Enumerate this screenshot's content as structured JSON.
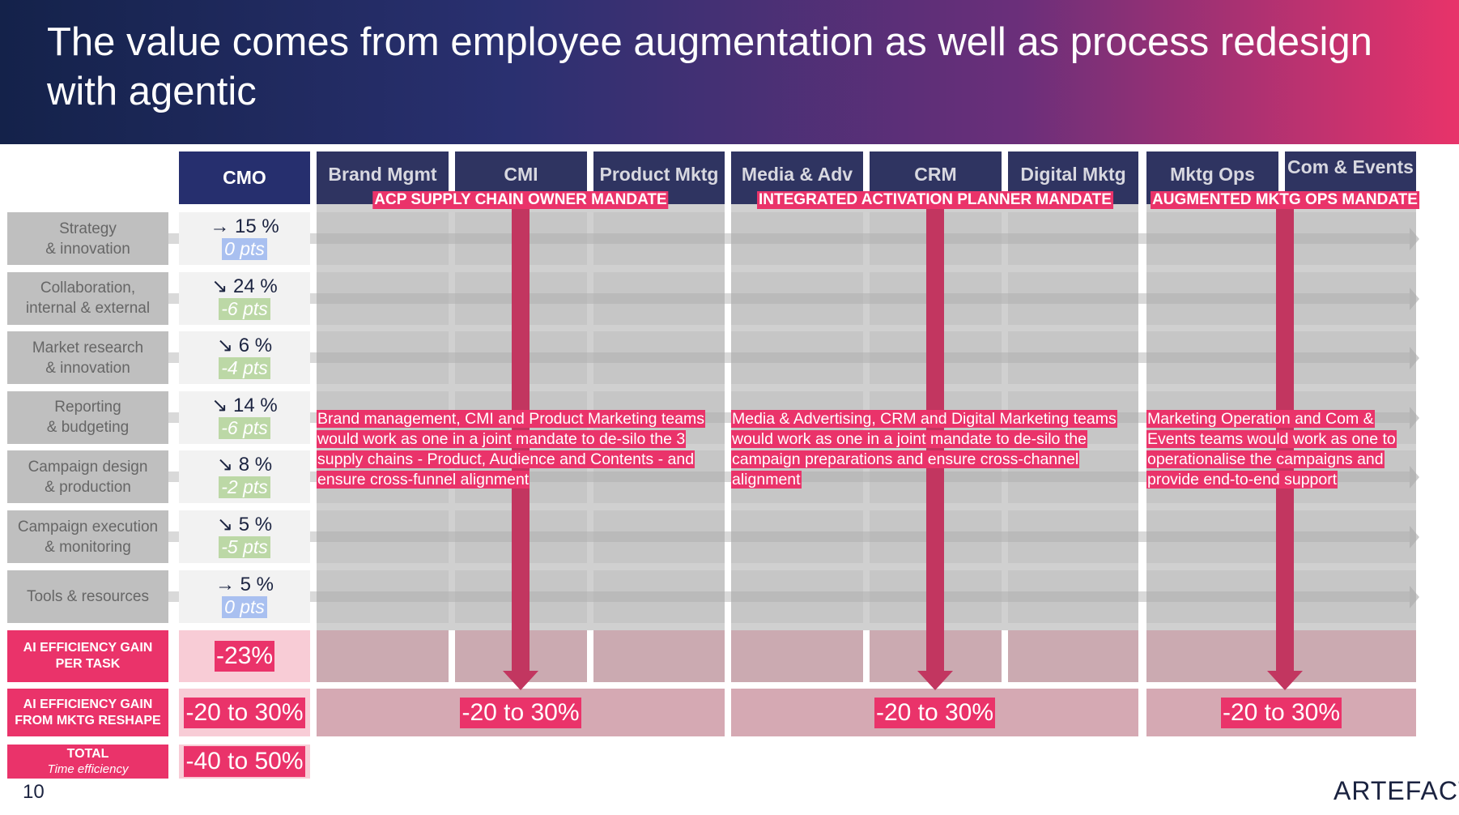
{
  "title": "The value comes from employee augmentation as well as process redesign with agentic",
  "columns": {
    "cmo": "CMO",
    "teams": [
      "Brand Mgmt",
      "CMI",
      "Product Mktg",
      "Media & Adv",
      "CRM",
      "Digital Mktg",
      "Mktg Ops",
      "Com & Events"
    ]
  },
  "mandates": [
    "ACP SUPPLY CHAIN OWNER MANDATE",
    "INTEGRATED ACTIVATION PLANNER MANDATE",
    "AUGMENTED MKTG OPS MANDATE"
  ],
  "descriptions": [
    "Brand management, CMI and Product Marketing teams would work as one in a joint mandate to de-silo the 3 supply chains - Product, Audience and Contents - and ensure cross-funnel alignment",
    "Media & Advertising, CRM and Digital Marketing teams would work as one in a joint mandate to de-silo the campaign preparations and ensure cross-channel alignment",
    "Marketing Operation and Com & Events teams would work as one to operationalise the campaigns and provide end-to-end support"
  ],
  "tasks": [
    {
      "label": "Strategy\n& innovation",
      "pct": "→ 15 %",
      "pts": "0 pts",
      "trend": "flat"
    },
    {
      "label": "Collaboration,\ninternal & external",
      "pct": "↘ 24 %",
      "pts": "-6 pts",
      "trend": "down"
    },
    {
      "label": "Market research\n& innovation",
      "pct": "↘ 6 %",
      "pts": "-4 pts",
      "trend": "down"
    },
    {
      "label": "Reporting\n& budgeting",
      "pct": "↘ 14 %",
      "pts": "-6 pts",
      "trend": "down"
    },
    {
      "label": "Campaign design\n& production",
      "pct": "↘ 8 %",
      "pts": "-2 pts",
      "trend": "down"
    },
    {
      "label": "Campaign execution\n& monitoring",
      "pct": "↘ 5 %",
      "pts": "-5 pts",
      "trend": "down"
    },
    {
      "label": "Tools & resources",
      "pct": "→ 5 %",
      "pts": "0 pts",
      "trend": "flat"
    }
  ],
  "summary": {
    "per_task": {
      "label1": "AI EFFICIENCY GAIN",
      "label2": "PER TASK",
      "cmo": "-23%"
    },
    "reshape": {
      "label1": "AI EFFICIENCY GAIN",
      "label2": "FROM MKTG RESHAPE",
      "cmo": "-20 to 30%",
      "groups": [
        "-20 to 30%",
        "-20 to 30%",
        "-20 to 30%"
      ]
    },
    "total": {
      "label": "TOTAL",
      "sublabel": "Time efficiency",
      "cmo": "-40 to 50%"
    }
  },
  "colors": {
    "accent": "#ea336a",
    "flat_pts": "#a9c0f0",
    "down_pts": "#bcd8a6",
    "navy": "#262f6e"
  },
  "page_number": "10",
  "logo": "ARTEFACT"
}
